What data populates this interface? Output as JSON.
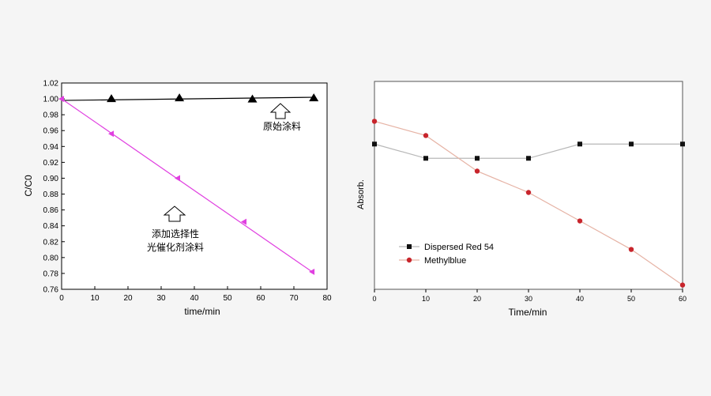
{
  "chart_data": [
    {
      "type": "line",
      "xlabel": "time/min",
      "ylabel": "C/C0",
      "xlim": [
        0,
        80
      ],
      "ylim": [
        0.76,
        1.02
      ],
      "xticks": [
        0,
        10,
        20,
        30,
        40,
        50,
        60,
        70,
        80
      ],
      "yticks": [
        0.76,
        0.78,
        0.8,
        0.82,
        0.84,
        0.86,
        0.88,
        0.9,
        0.92,
        0.94,
        0.96,
        0.98,
        1.0,
        1.02
      ],
      "grid": false,
      "series": [
        {
          "color": "#000000",
          "marker": "triangle-up",
          "x": [
            15,
            35.5,
            57.5,
            76
          ],
          "y": [
            1.0,
            1.001,
            0.9995,
            1.001
          ],
          "fit": {
            "x": [
              0,
              76
            ],
            "y": [
              0.998,
              1.002
            ]
          }
        },
        {
          "color": "#e040e0",
          "marker": "triangle-left",
          "x": [
            0,
            15,
            35,
            55,
            75.5
          ],
          "y": [
            1.0,
            0.956,
            0.9,
            0.845,
            0.782
          ],
          "fit": {
            "x": [
              0,
              75.5
            ],
            "y": [
              1.0,
              0.782
            ]
          }
        }
      ],
      "annotations": [
        {
          "id": "top",
          "text": "原始涂料"
        },
        {
          "id": "bottom_line1",
          "text": "添加选择性"
        },
        {
          "id": "bottom_line2",
          "text": "光催化剂涂料"
        }
      ]
    },
    {
      "type": "line",
      "xlabel": "Time/min",
      "ylabel": "Absorb.",
      "xlim": [
        0,
        60
      ],
      "xticks": [
        0,
        10,
        20,
        30,
        40,
        50,
        60
      ],
      "yticks_shown": false,
      "grid": false,
      "legend": "bottom-left",
      "series": [
        {
          "name": "Dispersed Red 54",
          "color": "#111111",
          "line_color": "#b8b8b8",
          "marker": "square",
          "x": [
            0,
            10,
            20,
            30,
            40,
            50,
            60
          ],
          "y": [
            0.96,
            0.86,
            0.86,
            0.86,
            0.96,
            0.96,
            0.96
          ]
        },
        {
          "name": "Methylblue",
          "color": "#c8252c",
          "line_color": "#e6b3a5",
          "marker": "circle",
          "x": [
            0,
            10,
            20,
            30,
            40,
            50,
            60
          ],
          "y": [
            1.12,
            1.02,
            0.77,
            0.62,
            0.42,
            0.22,
            -0.03
          ]
        }
      ]
    }
  ]
}
